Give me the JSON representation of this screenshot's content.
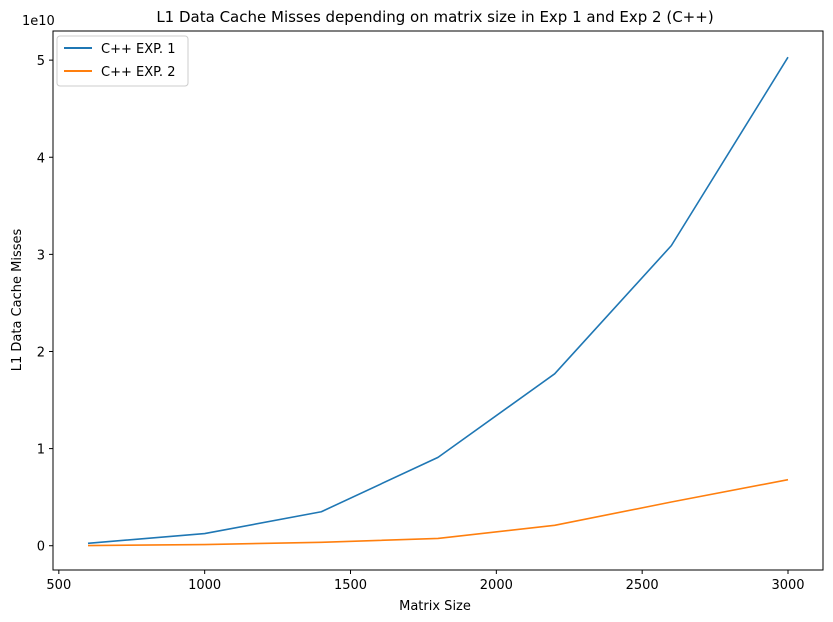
{
  "chart_data": {
    "type": "line",
    "title": "L1 Data Cache Misses depending on matrix size in Exp 1 and Exp 2 (C++)",
    "xlabel": "Matrix Size",
    "ylabel": "L1 Data Cache Misses",
    "y_offset_label": "1e10",
    "y_scale": 10000000000,
    "xlim": [
      480,
      3120
    ],
    "ylim": [
      -0.25,
      5.3
    ],
    "xticks": [
      500,
      1000,
      1500,
      2000,
      2500,
      3000
    ],
    "yticks": [
      0,
      1,
      2,
      3,
      4,
      5
    ],
    "grid": false,
    "legend_position": "top-left",
    "x": [
      600,
      1000,
      1400,
      1800,
      2200,
      2600,
      3000
    ],
    "series": [
      {
        "name": "C++ EXP. 1",
        "color": "#1f77b4",
        "values": [
          0.025,
          0.125,
          0.35,
          0.91,
          1.77,
          3.09,
          5.03
        ]
      },
      {
        "name": "C++ EXP. 2",
        "color": "#ff7f0e",
        "values": [
          0.002,
          0.012,
          0.035,
          0.075,
          0.21,
          0.45,
          0.68
        ]
      }
    ]
  }
}
